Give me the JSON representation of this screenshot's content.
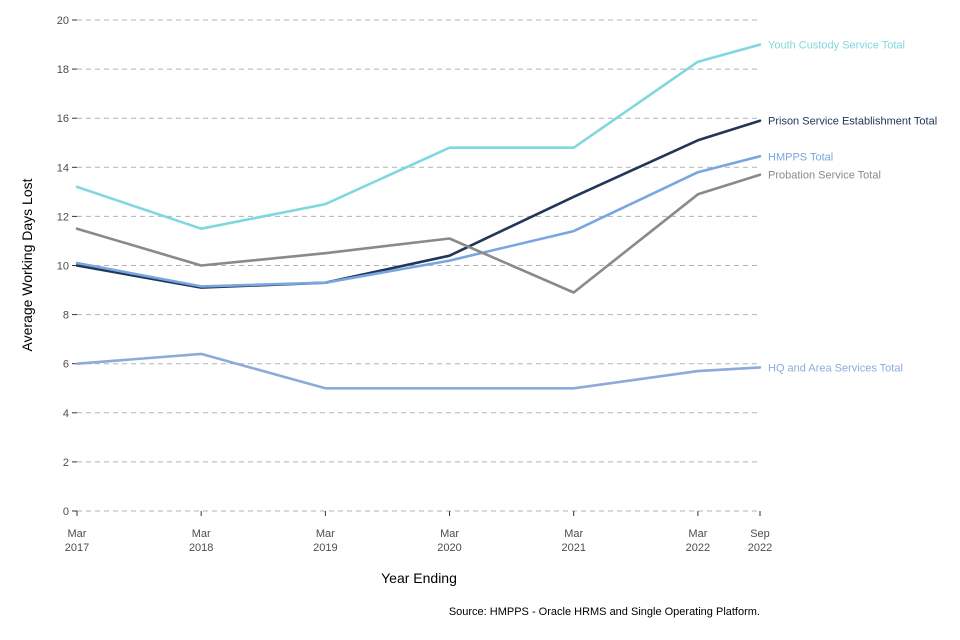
{
  "chart_data": {
    "type": "line",
    "title": "",
    "xlabel": "Year Ending",
    "ylabel": "Average Working Days Lost",
    "ylim": [
      0,
      20
    ],
    "yticks": [
      0,
      2,
      4,
      6,
      8,
      10,
      12,
      14,
      16,
      18,
      20
    ],
    "grid": true,
    "legend": "direct labels at right end of lines",
    "x_index": [
      0,
      1,
      2,
      3,
      4,
      5,
      5.5
    ],
    "categories": [
      {
        "line1": "Mar",
        "line2": "2017"
      },
      {
        "line1": "Mar",
        "line2": "2018"
      },
      {
        "line1": "Mar",
        "line2": "2019"
      },
      {
        "line1": "Mar",
        "line2": "2020"
      },
      {
        "line1": "Mar",
        "line2": "2021"
      },
      {
        "line1": "Mar",
        "line2": "2022"
      },
      {
        "line1": "Sep",
        "line2": "2022"
      }
    ],
    "series": [
      {
        "name": "Youth Custody Service Total",
        "color": "#7fd8df",
        "values": [
          13.2,
          11.5,
          12.5,
          14.8,
          14.8,
          18.3,
          19.0
        ]
      },
      {
        "name": "Prison Service Establishment Total",
        "color": "#213659",
        "values": [
          10.0,
          9.1,
          9.3,
          10.4,
          12.8,
          15.1,
          15.9
        ]
      },
      {
        "name": "HMPPS Total",
        "color": "#7aa6e0",
        "values": [
          10.1,
          9.15,
          9.3,
          10.2,
          11.4,
          13.8,
          14.45
        ]
      },
      {
        "name": "Probation Service Total",
        "color": "#8a8a8a",
        "values": [
          11.5,
          10.0,
          10.5,
          11.1,
          8.9,
          12.9,
          13.7
        ]
      },
      {
        "name": "HQ and Area Services Total",
        "color": "#8eaad8",
        "values": [
          6.0,
          6.4,
          5.0,
          5.0,
          5.0,
          5.7,
          5.85
        ]
      }
    ],
    "source": "Source: HMPPS - Oracle HRMS and Single Operating Platform."
  }
}
